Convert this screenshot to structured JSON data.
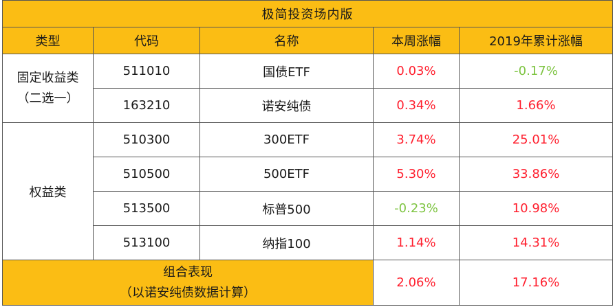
{
  "title": "极简投资场内版",
  "headers": [
    "类型",
    "代码",
    "名称",
    "本周涨幅",
    "2019年累计涨幅"
  ],
  "groups": {
    "fixed_income": {
      "line1": "固定收益类",
      "line2": "（二选一）"
    },
    "equity": {
      "label": "权益类"
    }
  },
  "rows": [
    {
      "code": "511010",
      "name": "国债ETF",
      "week": "0.03%",
      "week_color": "red",
      "ytd": "-0.17%",
      "ytd_color": "green"
    },
    {
      "code": "163210",
      "name": "诺安纯债",
      "week": "0.34%",
      "week_color": "red",
      "ytd": "1.66%",
      "ytd_color": "red"
    },
    {
      "code": "510300",
      "name": "300ETF",
      "week": "3.74%",
      "week_color": "red",
      "ytd": "25.01%",
      "ytd_color": "red"
    },
    {
      "code": "510500",
      "name": "500ETF",
      "week": "5.30%",
      "week_color": "red",
      "ytd": "33.86%",
      "ytd_color": "red"
    },
    {
      "code": "513500",
      "name": "标普500",
      "week": "-0.23%",
      "week_color": "green",
      "ytd": "10.98%",
      "ytd_color": "red"
    },
    {
      "code": "513100",
      "name": "纳指100",
      "week": "1.14%",
      "week_color": "red",
      "ytd": "14.31%",
      "ytd_color": "red"
    }
  ],
  "summary": {
    "line1": "组合表现",
    "line2": "（以诺安纯债数据计算）",
    "week": "2.06%",
    "ytd": "17.16%"
  },
  "colors": {
    "header_bg": "#fbbd14",
    "positive": "#ff1f2e",
    "negative": "#7ec442",
    "border": "#555555"
  }
}
